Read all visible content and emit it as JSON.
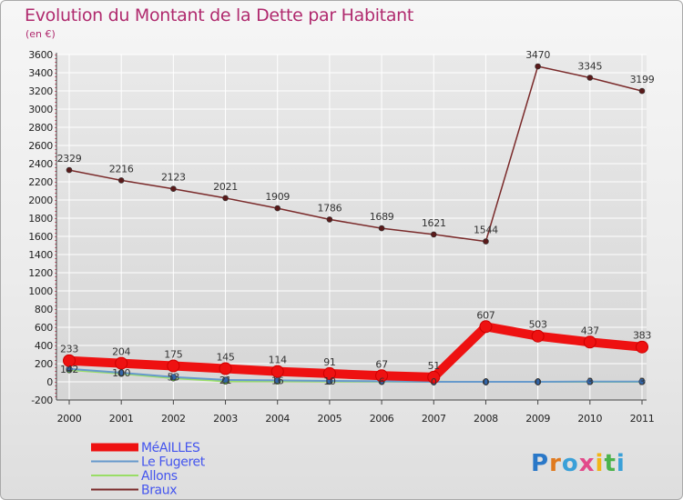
{
  "header": {
    "title": "Evolution du Montant de la Dette par Habitant",
    "unit": "(en €)"
  },
  "logo": {
    "text": "Proxiti"
  },
  "colors": {
    "title": "#b02a6e",
    "grid": "#ffffff",
    "legend_text": "#4455ee"
  },
  "chart_data": {
    "type": "line",
    "title": "Evolution du Montant de la Dette par Habitant",
    "ylabel": "(en €)",
    "xlabel": "",
    "categories": [
      "2000",
      "2001",
      "2002",
      "2003",
      "2004",
      "2005",
      "2006",
      "2007",
      "2008",
      "2009",
      "2010",
      "2011"
    ],
    "ylim": [
      -200,
      3600
    ],
    "yticks": [
      -200,
      0,
      200,
      400,
      600,
      800,
      1000,
      1200,
      1400,
      1600,
      1800,
      2000,
      2200,
      2400,
      2600,
      2800,
      3000,
      3200,
      3400,
      3600
    ],
    "legend_position": "bottom-left",
    "series": [
      {
        "name": "MéAILLES",
        "color": "#ee1111",
        "marker": "#ee1111",
        "values": [
          233,
          204,
          175,
          145,
          114,
          91,
          67,
          51,
          607,
          503,
          437,
          383
        ],
        "labels": [
          "233",
          "204",
          "175",
          "145",
          "114",
          "91",
          "67",
          "51",
          "607",
          "503",
          "437",
          "383"
        ]
      },
      {
        "name": "Le Fugeret",
        "color": "#6699cc",
        "marker": "#3366aa",
        "values": [
          142,
          100,
          53,
          21,
          16,
          10,
          6,
          0,
          0,
          0,
          3,
          3
        ],
        "labels": [
          "142",
          "100",
          "53",
          "21",
          "16",
          "10",
          "6",
          "0",
          "0",
          "0",
          "3",
          "3"
        ]
      },
      {
        "name": "Allons",
        "color": "#99dd66",
        "marker": "#66cc33",
        "values": [
          130,
          90,
          40,
          5,
          5,
          3,
          2,
          1,
          0,
          0,
          0,
          0
        ],
        "labels": []
      },
      {
        "name": "Braux",
        "color": "#7a2a2a",
        "marker": "#5a1a1a",
        "values": [
          2329,
          2216,
          2123,
          2021,
          1909,
          1786,
          1689,
          1621,
          1544,
          3470,
          3345,
          3199
        ],
        "labels": [
          "2329",
          "2216",
          "2123",
          "2021",
          "1909",
          "1786",
          "1689",
          "1621",
          "1544",
          "3470",
          "3345",
          "3199"
        ]
      }
    ]
  }
}
